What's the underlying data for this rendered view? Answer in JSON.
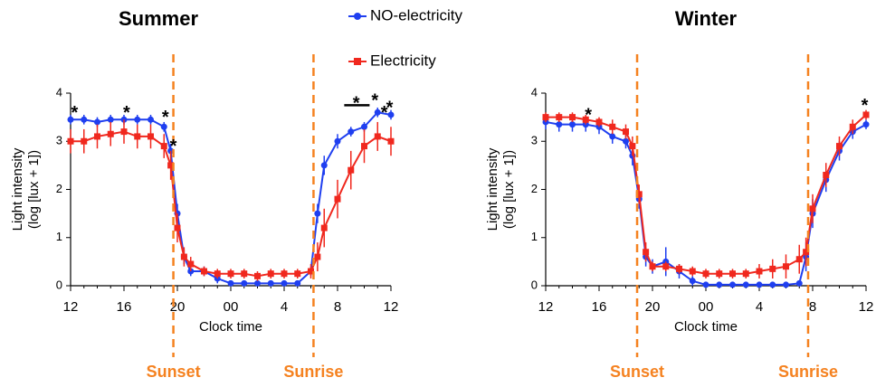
{
  "chart_data": [
    {
      "type": "line",
      "title": "Summer",
      "xlabel": "Clock time",
      "ylabel": [
        "Light intensity",
        "(log [lux + 1])"
      ],
      "x": [
        12,
        13,
        14,
        15,
        16,
        17,
        18,
        19,
        19.5,
        20,
        20.5,
        21,
        22,
        23,
        24,
        25,
        26,
        27,
        28,
        29,
        30,
        30.5,
        31,
        32,
        33,
        34,
        35,
        36
      ],
      "series": [
        {
          "name": "NO-electricity",
          "color": "#1f3ff0",
          "values": [
            3.45,
            3.45,
            3.4,
            3.45,
            3.45,
            3.45,
            3.45,
            3.3,
            2.8,
            1.5,
            0.6,
            0.3,
            0.3,
            0.15,
            0.05,
            0.05,
            0.05,
            0.05,
            0.05,
            0.05,
            0.3,
            1.5,
            2.5,
            3.0,
            3.2,
            3.3,
            3.6,
            3.55
          ],
          "errors": [
            0.1,
            0.1,
            0.1,
            0.1,
            0.1,
            0.1,
            0.1,
            0.1,
            0.15,
            0.2,
            0.15,
            0.1,
            0.1,
            0.1,
            0.05,
            0.05,
            0.05,
            0.05,
            0.05,
            0.05,
            0.1,
            0.2,
            0.2,
            0.15,
            0.1,
            0.1,
            0.1,
            0.1
          ]
        },
        {
          "name": "Electricity",
          "color": "#f0281e",
          "values": [
            3.0,
            3.0,
            3.1,
            3.15,
            3.2,
            3.1,
            3.1,
            2.9,
            2.5,
            1.2,
            0.6,
            0.45,
            0.3,
            0.25,
            0.25,
            0.25,
            0.2,
            0.25,
            0.25,
            0.25,
            0.3,
            0.6,
            1.2,
            1.8,
            2.4,
            2.9,
            3.1,
            3.0
          ],
          "errors": [
            0.25,
            0.25,
            0.25,
            0.25,
            0.25,
            0.25,
            0.25,
            0.25,
            0.3,
            0.3,
            0.2,
            0.15,
            0.1,
            0.1,
            0.1,
            0.1,
            0.1,
            0.1,
            0.1,
            0.1,
            0.15,
            0.3,
            0.4,
            0.4,
            0.4,
            0.35,
            0.3,
            0.3
          ]
        }
      ],
      "xlim": [
        12,
        36
      ],
      "ylim": [
        0,
        4
      ],
      "xticks": [
        12,
        16,
        20,
        {
          "value": 24,
          "label": "00"
        },
        {
          "value": 28,
          "label": "4"
        },
        {
          "value": 32,
          "label": "8"
        },
        {
          "value": 36,
          "label": "12"
        }
      ],
      "yticks": [
        0,
        1,
        2,
        3,
        4
      ],
      "vlines": [
        {
          "x": 19.7,
          "label": "Sunset",
          "color": "#f58220"
        },
        {
          "x": 30.2,
          "label": "Sunrise",
          "color": "#f58220"
        }
      ],
      "annotations": [
        {
          "text": "*",
          "x": 12.3,
          "y": 3.65
        },
        {
          "text": "*",
          "x": 16.2,
          "y": 3.65
        },
        {
          "text": "*",
          "x": 19.1,
          "y": 3.55
        },
        {
          "text": "*",
          "x": 19.7,
          "y": 2.95
        },
        {
          "text": "*",
          "x": 33.4,
          "y": 3.85
        },
        {
          "text": "*",
          "x": 34.8,
          "y": 3.9
        },
        {
          "text": "*",
          "x": 35.5,
          "y": 3.65
        },
        {
          "text": "*",
          "x": 35.9,
          "y": 3.75
        }
      ],
      "sig_bar": {
        "x": [
          32.5,
          34.4
        ],
        "y": 3.75
      }
    },
    {
      "type": "line",
      "title": "Winter",
      "xlabel": "Clock time",
      "ylabel": [
        "Light intensity",
        "(log [lux + 1])"
      ],
      "x": [
        12,
        13,
        14,
        15,
        16,
        17,
        18,
        18.5,
        19,
        19.5,
        20,
        21,
        22,
        23,
        24,
        25,
        26,
        27,
        28,
        29,
        30,
        31,
        31.5,
        32,
        33,
        34,
        35,
        36
      ],
      "series": [
        {
          "name": "NO-electricity",
          "color": "#1f3ff0",
          "values": [
            3.4,
            3.35,
            3.35,
            3.35,
            3.3,
            3.1,
            3.0,
            2.7,
            1.8,
            0.6,
            0.4,
            0.5,
            0.3,
            0.1,
            0.02,
            0.02,
            0.02,
            0.02,
            0.02,
            0.02,
            0.02,
            0.05,
            0.6,
            1.5,
            2.2,
            2.8,
            3.2,
            3.35
          ],
          "errors": [
            0.15,
            0.15,
            0.15,
            0.15,
            0.15,
            0.15,
            0.15,
            0.2,
            0.2,
            0.2,
            0.15,
            0.3,
            0.15,
            0.1,
            0.02,
            0.02,
            0.02,
            0.02,
            0.02,
            0.02,
            0.02,
            0.05,
            0.3,
            0.3,
            0.25,
            0.2,
            0.15,
            0.1
          ]
        },
        {
          "name": "Electricity",
          "color": "#f0281e",
          "values": [
            3.5,
            3.5,
            3.5,
            3.45,
            3.4,
            3.3,
            3.2,
            2.9,
            1.9,
            0.7,
            0.4,
            0.4,
            0.35,
            0.3,
            0.25,
            0.25,
            0.25,
            0.25,
            0.3,
            0.35,
            0.4,
            0.55,
            0.7,
            1.6,
            2.3,
            2.9,
            3.3,
            3.55
          ],
          "errors": [
            0.1,
            0.1,
            0.1,
            0.1,
            0.1,
            0.15,
            0.15,
            0.2,
            0.2,
            0.2,
            0.1,
            0.1,
            0.1,
            0.1,
            0.1,
            0.1,
            0.1,
            0.1,
            0.15,
            0.2,
            0.25,
            0.3,
            0.3,
            0.3,
            0.25,
            0.2,
            0.15,
            0.1
          ]
        }
      ],
      "xlim": [
        12,
        36
      ],
      "ylim": [
        0,
        4
      ],
      "xticks": [
        12,
        16,
        20,
        {
          "value": 24,
          "label": "00"
        },
        {
          "value": 28,
          "label": "4"
        },
        {
          "value": 32,
          "label": "8"
        },
        {
          "value": 36,
          "label": "12"
        }
      ],
      "yticks": [
        0,
        1,
        2,
        3,
        4
      ],
      "vlines": [
        {
          "x": 18.85,
          "label": "Sunset",
          "color": "#f58220"
        },
        {
          "x": 31.66,
          "label": "Sunrise",
          "color": "#f58220"
        }
      ],
      "annotations": [
        {
          "text": "*",
          "x": 15.2,
          "y": 3.6
        },
        {
          "text": "*",
          "x": 35.9,
          "y": 3.8
        }
      ]
    }
  ]
}
